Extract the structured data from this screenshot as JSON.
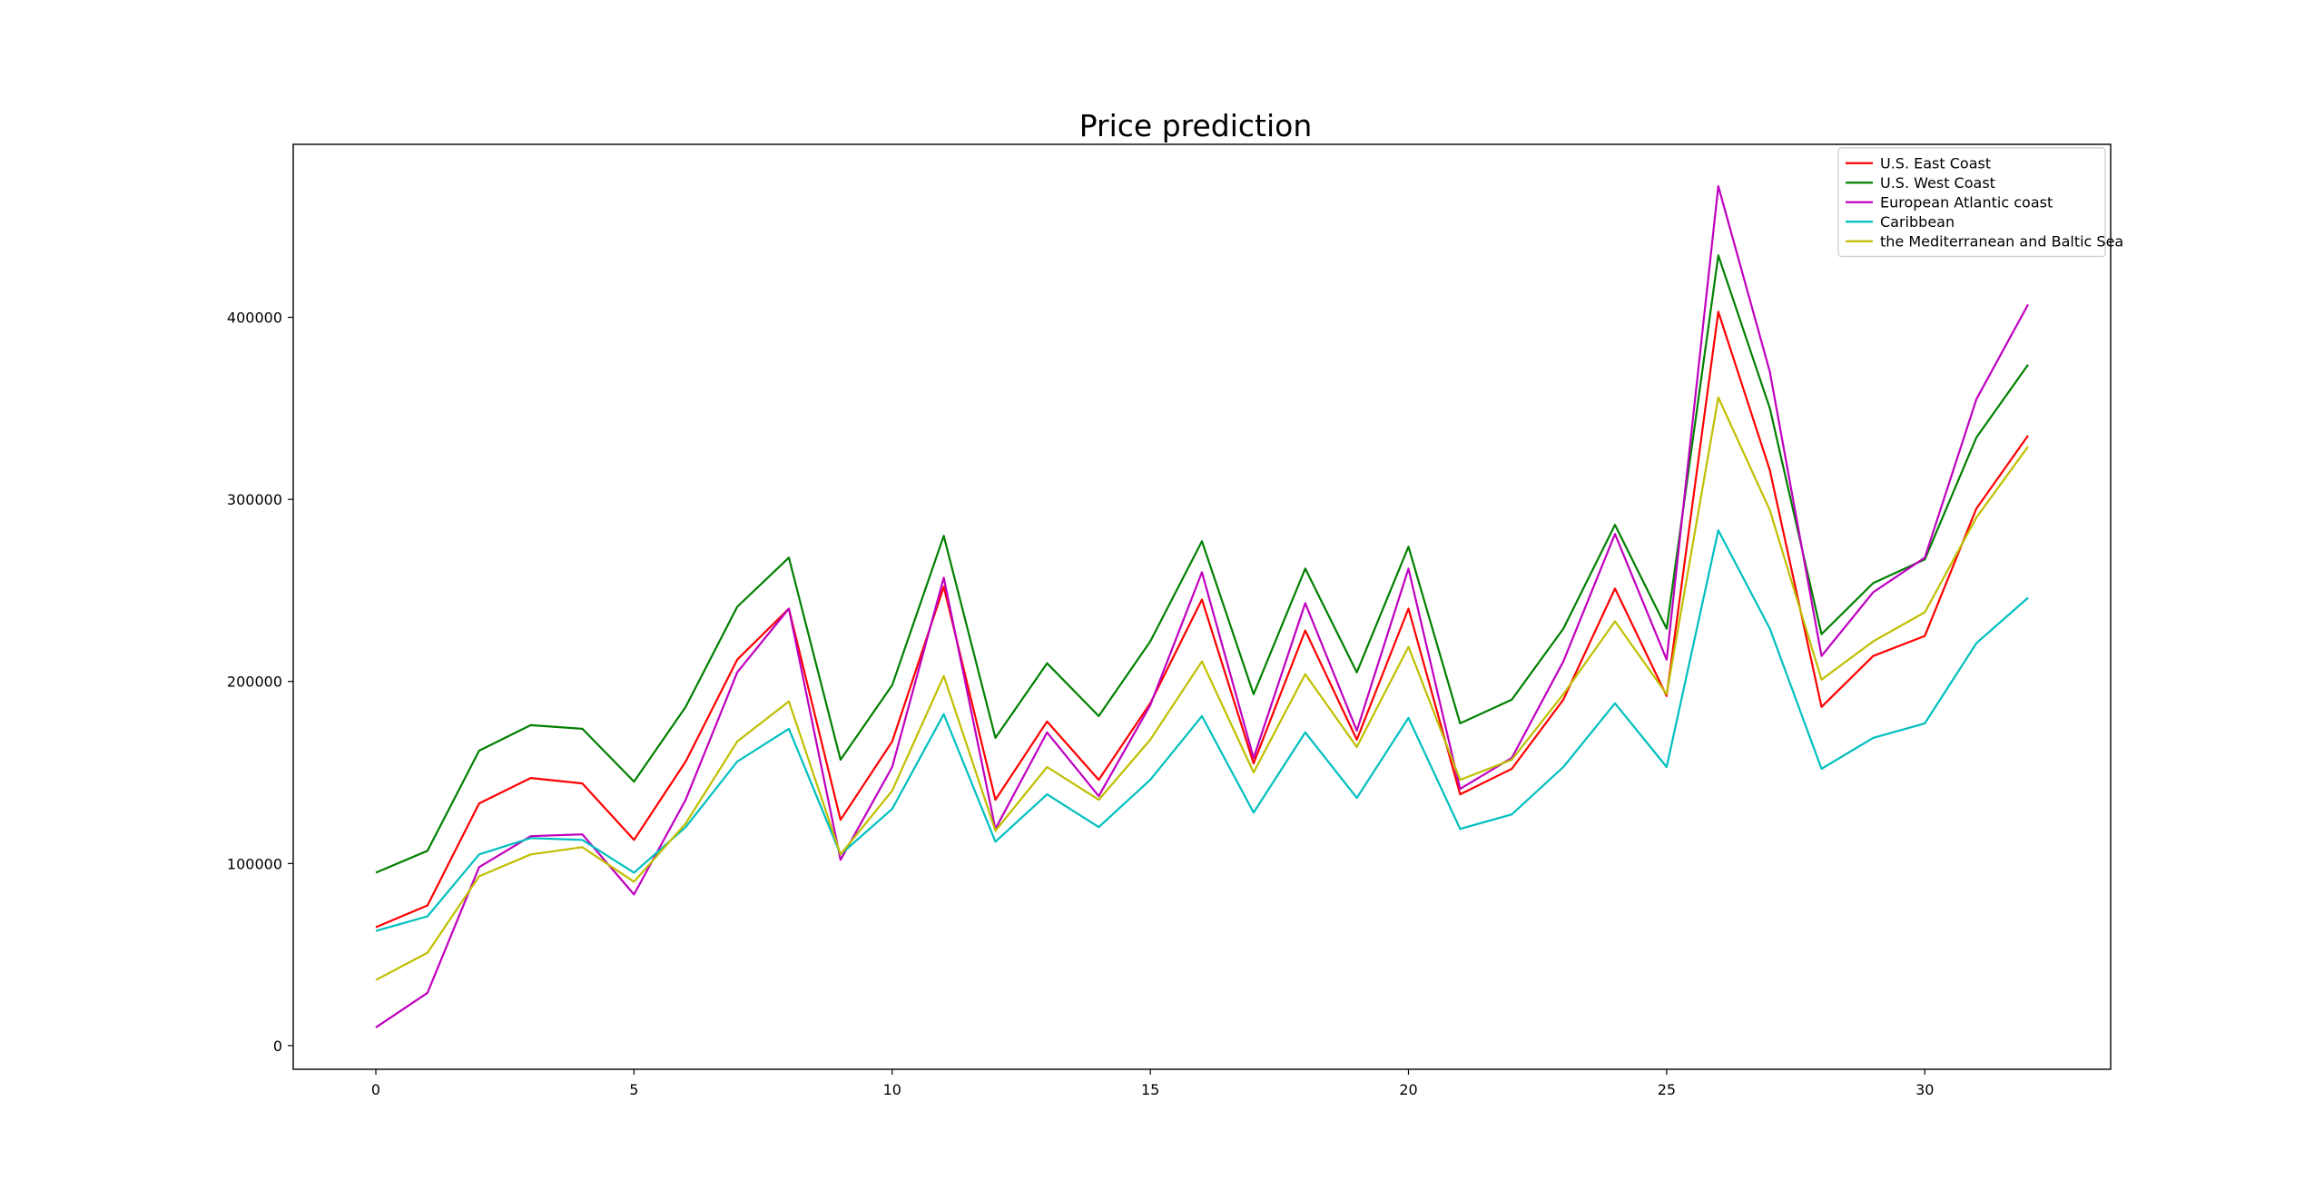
{
  "chart_data": {
    "type": "line",
    "title": "Price prediction",
    "xlabel": "",
    "ylabel": "",
    "xlim": [
      -1.6,
      33.6
    ],
    "ylim": [
      -13000,
      495000
    ],
    "x_ticks": [
      0,
      5,
      10,
      15,
      20,
      25,
      30
    ],
    "y_ticks": [
      0,
      100000,
      200000,
      300000,
      400000
    ],
    "grid": false,
    "legend_position": "top-right",
    "x": [
      0,
      1,
      2,
      3,
      4,
      5,
      6,
      7,
      8,
      9,
      10,
      11,
      12,
      13,
      14,
      15,
      16,
      17,
      18,
      19,
      20,
      21,
      22,
      23,
      24,
      25,
      26,
      27,
      28,
      29,
      30,
      31,
      32
    ],
    "series": [
      {
        "name": "U.S. East Coast",
        "color": "#ff0000",
        "values": [
          65000,
          77000,
          133000,
          147000,
          144000,
          113000,
          156000,
          212000,
          240000,
          124000,
          167000,
          252000,
          135000,
          178000,
          146000,
          188000,
          245000,
          155000,
          228000,
          168000,
          240000,
          138000,
          152000,
          190000,
          251000,
          192000,
          403000,
          316000,
          186000,
          214000,
          225000,
          295000,
          335000
        ]
      },
      {
        "name": "U.S. West Coast",
        "color": "#008000",
        "values": [
          95000,
          107000,
          162000,
          176000,
          174000,
          145000,
          186000,
          241000,
          268000,
          157000,
          198000,
          280000,
          169000,
          210000,
          181000,
          222000,
          277000,
          193000,
          262000,
          205000,
          274000,
          177000,
          190000,
          229000,
          286000,
          229000,
          434000,
          350000,
          226000,
          254000,
          267000,
          334000,
          374000
        ]
      },
      {
        "name": "European Atlantic coast",
        "color": "#bf00bf",
        "values": [
          10000,
          29000,
          98000,
          115000,
          116000,
          83000,
          135000,
          205000,
          240000,
          102000,
          153000,
          257000,
          119000,
          172000,
          137000,
          187000,
          260000,
          158000,
          243000,
          173000,
          262000,
          141000,
          158000,
          211000,
          281000,
          212000,
          472000,
          370000,
          214000,
          249000,
          268000,
          355000,
          407000
        ]
      },
      {
        "name": "Caribbean",
        "color": "#00bfbf",
        "values": [
          63000,
          71000,
          105000,
          114000,
          113000,
          95000,
          120000,
          156000,
          174000,
          105000,
          130000,
          182000,
          112000,
          138000,
          120000,
          146000,
          181000,
          128000,
          172000,
          136000,
          180000,
          119000,
          127000,
          153000,
          188000,
          153000,
          283000,
          229000,
          152000,
          169000,
          177000,
          221000,
          246000
        ]
      },
      {
        "name": "the Mediterranean and Baltic Sea",
        "color": "#bfbf00",
        "values": [
          36000,
          51000,
          93000,
          105000,
          109000,
          90000,
          122000,
          167000,
          189000,
          105000,
          140000,
          203000,
          118000,
          153000,
          135000,
          168000,
          211000,
          150000,
          204000,
          164000,
          219000,
          146000,
          157000,
          193000,
          233000,
          193000,
          356000,
          294000,
          201000,
          222000,
          238000,
          290000,
          329000
        ]
      }
    ]
  }
}
